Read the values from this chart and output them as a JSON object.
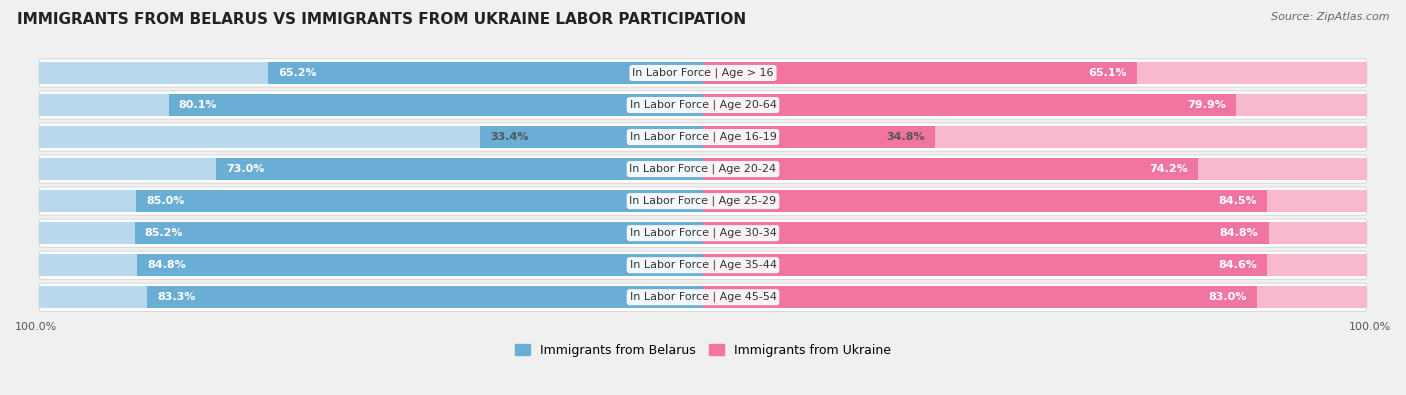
{
  "title": "IMMIGRANTS FROM BELARUS VS IMMIGRANTS FROM UKRAINE LABOR PARTICIPATION",
  "source": "Source: ZipAtlas.com",
  "categories": [
    "In Labor Force | Age > 16",
    "In Labor Force | Age 20-64",
    "In Labor Force | Age 16-19",
    "In Labor Force | Age 20-24",
    "In Labor Force | Age 25-29",
    "In Labor Force | Age 30-34",
    "In Labor Force | Age 35-44",
    "In Labor Force | Age 45-54"
  ],
  "belarus_values": [
    65.2,
    80.1,
    33.4,
    73.0,
    85.0,
    85.2,
    84.8,
    83.3
  ],
  "ukraine_values": [
    65.1,
    79.9,
    34.8,
    74.2,
    84.5,
    84.8,
    84.6,
    83.0
  ],
  "belarus_color": "#6aaed6",
  "ukraine_color": "#f075a0",
  "belarus_light_color": "#b8d9ed",
  "ukraine_light_color": "#f7b8d0",
  "row_bg_color": "#e8e8e8",
  "max_value": 100.0,
  "bg_color": "#f0f0f0",
  "legend_belarus": "Immigrants from Belarus",
  "legend_ukraine": "Immigrants from Ukraine",
  "title_fontsize": 11,
  "source_fontsize": 8,
  "label_fontsize": 8,
  "value_fontsize": 8
}
